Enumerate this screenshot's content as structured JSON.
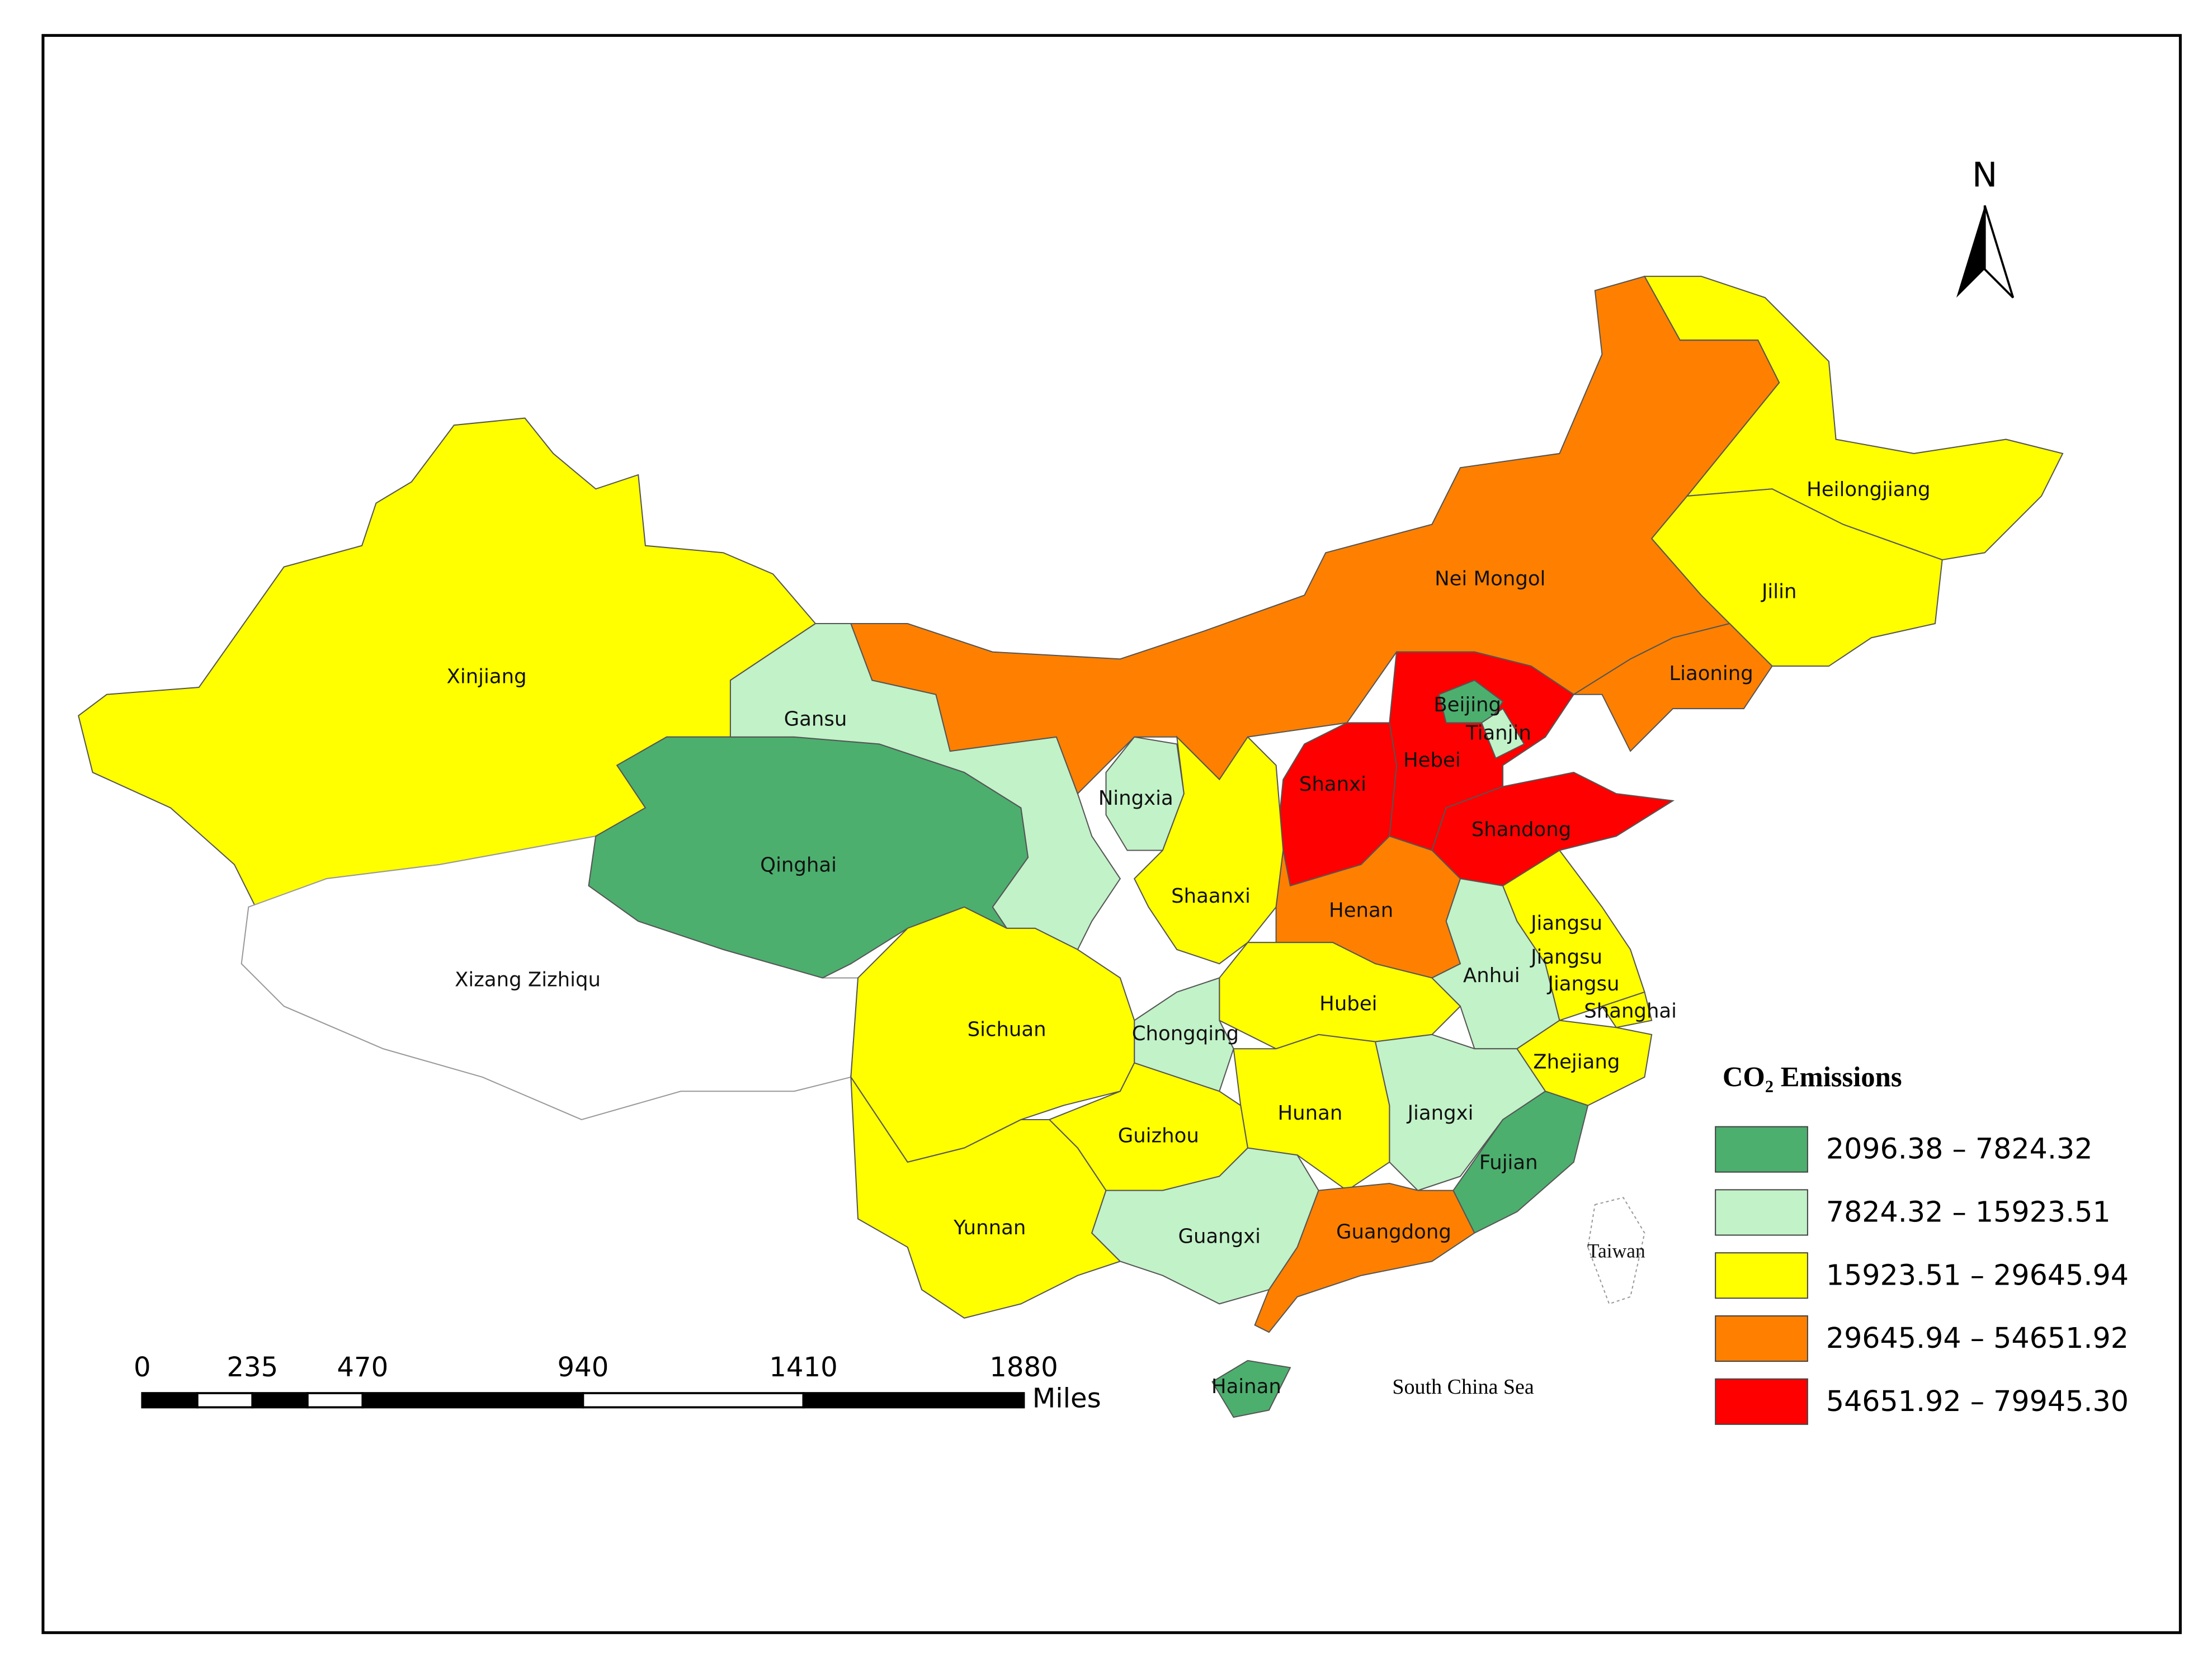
{
  "map": {
    "provinces": [
      {
        "name": "Xinjiang",
        "class": 2
      },
      {
        "name": "Xizang Zizhiqu",
        "class": null
      },
      {
        "name": "Qinghai",
        "class": 0
      },
      {
        "name": "Gansu",
        "class": 1
      },
      {
        "name": "Nei Mongol",
        "class": 3
      },
      {
        "name": "Heilongjiang",
        "class": 2
      },
      {
        "name": "Jilin",
        "class": 2
      },
      {
        "name": "Liaoning",
        "class": 3
      },
      {
        "name": "Hebei",
        "class": 4
      },
      {
        "name": "Beijing",
        "class": 0
      },
      {
        "name": "Tianjin",
        "class": 1
      },
      {
        "name": "Shanxi",
        "class": 4
      },
      {
        "name": "Shandong",
        "class": 4
      },
      {
        "name": "Ningxia",
        "class": 1
      },
      {
        "name": "Shaanxi",
        "class": 2
      },
      {
        "name": "Henan",
        "class": 3
      },
      {
        "name": "Hubei",
        "class": 2
      },
      {
        "name": "Anhui",
        "class": 1
      },
      {
        "name": "Jiangsu",
        "class": 2
      },
      {
        "name": "Shanghai",
        "class": 2
      },
      {
        "name": "Zhejiang",
        "class": 2
      },
      {
        "name": "Jiangxi",
        "class": 1
      },
      {
        "name": "Fujian",
        "class": 0
      },
      {
        "name": "Hunan",
        "class": 2
      },
      {
        "name": "Chongqing",
        "class": 1
      },
      {
        "name": "Sichuan",
        "class": 2
      },
      {
        "name": "Guizhou",
        "class": 2
      },
      {
        "name": "Yunnan",
        "class": 2
      },
      {
        "name": "Guangxi",
        "class": 1
      },
      {
        "name": "Guangdong",
        "class": 3
      },
      {
        "name": "Hainan",
        "class": 0
      },
      {
        "name": "Taiwan",
        "class": null
      },
      {
        "name": "Jiangsu",
        "class": 2
      },
      {
        "name": "Jiangsu",
        "class": 2
      }
    ],
    "legend": {
      "title": "CO₂ Emissions",
      "entries": [
        {
          "label": "2096.38 – 7824.32",
          "color": "#4caf6e"
        },
        {
          "label": "7824.32 – 15923.51",
          "color": "#c2f2c8"
        },
        {
          "label": "15923.51 – 29645.94",
          "color": "#ffff00"
        },
        {
          "label": "29645.94 – 54651.92",
          "color": "#ff8000"
        },
        {
          "label": "54651.92 – 79945.30",
          "color": "#ff0000"
        }
      ]
    },
    "scale_bar": {
      "ticks": [
        0,
        235,
        470,
        940,
        1410,
        1880
      ],
      "unit": "Miles"
    },
    "north_label": "N",
    "annotations": [
      "South China Sea"
    ]
  }
}
